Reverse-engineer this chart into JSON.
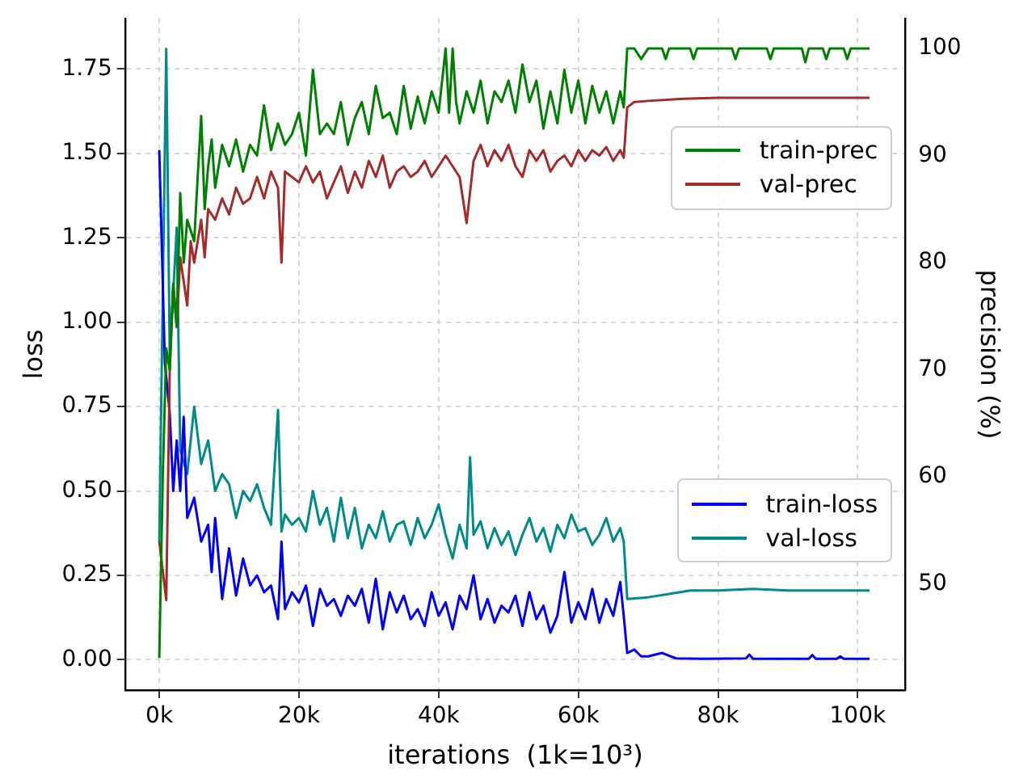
{
  "chart_data": {
    "type": "line",
    "xlabel": "iterations  (1k=10³)",
    "ylabel": "loss",
    "y2label": "precision (%)",
    "xlim": [
      -4900,
      106800
    ],
    "xticks": [
      {
        "value": 0,
        "label": "0k"
      },
      {
        "value": 20000,
        "label": "20k"
      },
      {
        "value": 40000,
        "label": "40k"
      },
      {
        "value": 60000,
        "label": "60k"
      },
      {
        "value": 80000,
        "label": "80k"
      },
      {
        "value": 100000,
        "label": "100k"
      }
    ],
    "ylim": [
      -0.09,
      1.9
    ],
    "yticks": [
      {
        "value": 0,
        "label": "0.00"
      },
      {
        "value": 0.25,
        "label": "0.25"
      },
      {
        "value": 0.5,
        "label": "0.50"
      },
      {
        "value": 0.75,
        "label": "0.75"
      },
      {
        "value": 1,
        "label": "1.00"
      },
      {
        "value": 1.25,
        "label": "1.25"
      },
      {
        "value": 1.5,
        "label": "1.50"
      },
      {
        "value": 1.75,
        "label": "1.75"
      }
    ],
    "y2lim": [
      40.1,
      102.8
    ],
    "y2ticks": [
      50,
      60,
      70,
      80,
      90,
      100
    ],
    "grid": true,
    "legend": "right",
    "marker": "none",
    "line_style": "solid",
    "series": [
      {
        "name": "train-prec",
        "color": "#008000",
        "axis": "y2",
        "x": [
          0,
          500,
          1000,
          1500,
          2000,
          2500,
          3000,
          3500,
          4000,
          5000,
          5500,
          6000,
          6500,
          7000,
          7500,
          8000,
          9000,
          10000,
          11000,
          12000,
          13000,
          14000,
          15000,
          16000,
          17000,
          18000,
          19000,
          20000,
          21000,
          22000,
          23000,
          24000,
          25000,
          26000,
          27000,
          28000,
          29000,
          30000,
          31000,
          32000,
          33000,
          34000,
          35000,
          36000,
          37000,
          38000,
          39000,
          40000,
          41000,
          41500,
          42000,
          42500,
          43000,
          44000,
          45000,
          46000,
          47000,
          48000,
          49000,
          50000,
          51000,
          52000,
          53000,
          54000,
          55000,
          56000,
          57000,
          58000,
          59000,
          60000,
          61000,
          62000,
          63000,
          64000,
          65000,
          66000,
          66500,
          67000,
          68000,
          69000,
          70000,
          72000,
          72500,
          73000,
          76000,
          76500,
          77000,
          82000,
          82500,
          83000,
          87000,
          87500,
          88000,
          92000,
          92500,
          93000,
          95000,
          95500,
          96000,
          98000,
          98500,
          99000,
          101700
        ],
        "values": [
          43.1,
          60,
          72,
          70,
          78,
          74,
          86.5,
          80,
          84,
          82,
          88,
          93.7,
          85,
          89,
          91.5,
          87,
          91,
          89,
          91.5,
          88.5,
          91,
          90,
          94.7,
          90.5,
          93,
          91,
          92,
          94,
          90,
          98,
          92,
          93,
          92,
          95,
          91,
          93.5,
          95,
          92,
          96.5,
          93.5,
          94,
          92,
          96.5,
          92.5,
          95.5,
          93,
          96,
          94,
          100,
          94,
          100,
          95,
          93,
          96,
          94,
          97,
          93,
          96,
          95,
          97,
          94,
          98.5,
          95,
          97,
          92.5,
          96,
          93,
          98,
          94,
          97,
          93,
          96.5,
          94,
          96,
          93,
          96,
          94.5,
          100,
          100,
          99,
          100,
          100,
          99,
          100,
          100,
          99,
          100,
          100,
          99,
          100,
          100,
          99,
          100,
          100,
          98.7,
          100,
          100,
          99,
          100,
          100,
          99,
          100,
          100
        ]
      },
      {
        "name": "val-prec",
        "color": "#a52a2a",
        "axis": "y2",
        "x": [
          0,
          1000,
          1500,
          2000,
          2500,
          3000,
          4000,
          4500,
          5000,
          6000,
          6500,
          7000,
          8000,
          9000,
          10000,
          11000,
          12000,
          13000,
          14000,
          15000,
          16000,
          17000,
          17500,
          18000,
          19000,
          20000,
          21000,
          22000,
          23000,
          24000,
          25000,
          26000,
          27000,
          28000,
          29000,
          30000,
          31000,
          32000,
          33000,
          34000,
          35000,
          36000,
          37000,
          38000,
          39000,
          40000,
          41000,
          42000,
          43000,
          44000,
          45000,
          46000,
          47000,
          48000,
          49000,
          50000,
          51000,
          52000,
          53000,
          54000,
          55000,
          56000,
          57000,
          58000,
          59000,
          60000,
          61000,
          62000,
          63000,
          64000,
          65000,
          66000,
          66500,
          67000,
          68000,
          70000,
          75000,
          80000,
          90000,
          101700
        ],
        "values": [
          54,
          48.5,
          70,
          78,
          74,
          80.5,
          76,
          82,
          80,
          84,
          80.5,
          85,
          84,
          86,
          84.5,
          87,
          85.5,
          86,
          88,
          86,
          88.5,
          87,
          80,
          88.5,
          88,
          87.5,
          89,
          87.5,
          88.5,
          86,
          87.5,
          89,
          86.5,
          88.5,
          87,
          89.5,
          88,
          90,
          87,
          88.5,
          89,
          88,
          88.5,
          89.5,
          88,
          89,
          90,
          89,
          88,
          83.7,
          89.5,
          91,
          89,
          90.5,
          89.5,
          91,
          89,
          88,
          90.5,
          89.5,
          90.5,
          88.5,
          89.5,
          90,
          89,
          90.5,
          89.5,
          90.5,
          90,
          90.8,
          89.5,
          90.5,
          89.8,
          94.5,
          95,
          95.1,
          95.3,
          95.4,
          95.4,
          95.4
        ]
      },
      {
        "name": "train-loss",
        "color": "#0000ff",
        "x": [
          0,
          800,
          1500,
          2000,
          2500,
          3000,
          3500,
          4000,
          5000,
          6000,
          7000,
          7500,
          8000,
          9000,
          10000,
          11000,
          12000,
          13000,
          14000,
          15000,
          16000,
          17000,
          17500,
          18000,
          19000,
          20000,
          21000,
          22000,
          23000,
          24000,
          25000,
          26000,
          27000,
          28000,
          29000,
          30000,
          31000,
          32000,
          33000,
          34000,
          35000,
          36000,
          37000,
          38000,
          39000,
          40000,
          41000,
          42000,
          43000,
          44000,
          45000,
          46000,
          47000,
          48000,
          49000,
          50000,
          51000,
          52000,
          53000,
          54000,
          55000,
          56000,
          57000,
          58000,
          59000,
          60000,
          61000,
          62000,
          63000,
          64000,
          65000,
          66000,
          66500,
          67000,
          68000,
          69000,
          70000,
          72000,
          74000,
          78000,
          84000,
          84500,
          85000,
          93000,
          93500,
          94000,
          97000,
          97500,
          98000,
          101700
        ],
        "values": [
          1.51,
          0.88,
          0.73,
          0.5,
          0.65,
          0.5,
          0.72,
          0.42,
          0.48,
          0.35,
          0.4,
          0.26,
          0.42,
          0.18,
          0.33,
          0.19,
          0.3,
          0.22,
          0.25,
          0.2,
          0.22,
          0.12,
          0.35,
          0.15,
          0.2,
          0.17,
          0.22,
          0.1,
          0.21,
          0.16,
          0.18,
          0.13,
          0.19,
          0.16,
          0.21,
          0.11,
          0.24,
          0.09,
          0.2,
          0.14,
          0.19,
          0.12,
          0.15,
          0.1,
          0.2,
          0.13,
          0.17,
          0.09,
          0.19,
          0.15,
          0.25,
          0.12,
          0.18,
          0.11,
          0.16,
          0.14,
          0.19,
          0.1,
          0.2,
          0.12,
          0.16,
          0.08,
          0.13,
          0.26,
          0.11,
          0.17,
          0.12,
          0.21,
          0.11,
          0.18,
          0.13,
          0.23,
          0.13,
          0.02,
          0.03,
          0.01,
          0.01,
          0.02,
          0.004,
          0.003,
          0.004,
          0.015,
          0.003,
          0.003,
          0.014,
          0.003,
          0.003,
          0.01,
          0.003,
          0.003
        ]
      },
      {
        "name": "val-loss",
        "color": "#008b8b",
        "x": [
          0,
          1000,
          1500,
          2500,
          3000,
          4000,
          5000,
          6000,
          7000,
          8000,
          9000,
          10000,
          11000,
          12000,
          13000,
          14000,
          15000,
          16000,
          17000,
          17500,
          18000,
          19000,
          20000,
          21000,
          22000,
          23000,
          24000,
          25000,
          26000,
          27000,
          28000,
          29000,
          30000,
          31000,
          32000,
          33000,
          34000,
          35000,
          36000,
          37000,
          38000,
          39000,
          40000,
          41000,
          42000,
          43000,
          44000,
          44500,
          45000,
          46000,
          47000,
          48000,
          49000,
          50000,
          51000,
          52000,
          53000,
          54000,
          55000,
          56000,
          57000,
          58000,
          59000,
          60000,
          61000,
          62000,
          63000,
          64000,
          65000,
          66000,
          66500,
          67000,
          70000,
          73000,
          76000,
          80000,
          85000,
          90000,
          95000,
          101700
        ],
        "values": [
          0.35,
          1.81,
          0.9,
          1.28,
          0.62,
          0.55,
          0.75,
          0.58,
          0.65,
          0.5,
          0.55,
          0.52,
          0.42,
          0.5,
          0.47,
          0.52,
          0.45,
          0.4,
          0.74,
          0.38,
          0.43,
          0.4,
          0.42,
          0.38,
          0.5,
          0.4,
          0.45,
          0.35,
          0.48,
          0.36,
          0.45,
          0.33,
          0.4,
          0.36,
          0.44,
          0.35,
          0.4,
          0.41,
          0.34,
          0.42,
          0.36,
          0.4,
          0.46,
          0.37,
          0.3,
          0.4,
          0.33,
          0.6,
          0.37,
          0.41,
          0.33,
          0.39,
          0.34,
          0.38,
          0.31,
          0.37,
          0.42,
          0.35,
          0.39,
          0.32,
          0.4,
          0.36,
          0.43,
          0.38,
          0.39,
          0.34,
          0.37,
          0.42,
          0.35,
          0.39,
          0.35,
          0.18,
          0.185,
          0.195,
          0.205,
          0.205,
          0.21,
          0.205,
          0.205,
          0.205
        ]
      }
    ]
  }
}
